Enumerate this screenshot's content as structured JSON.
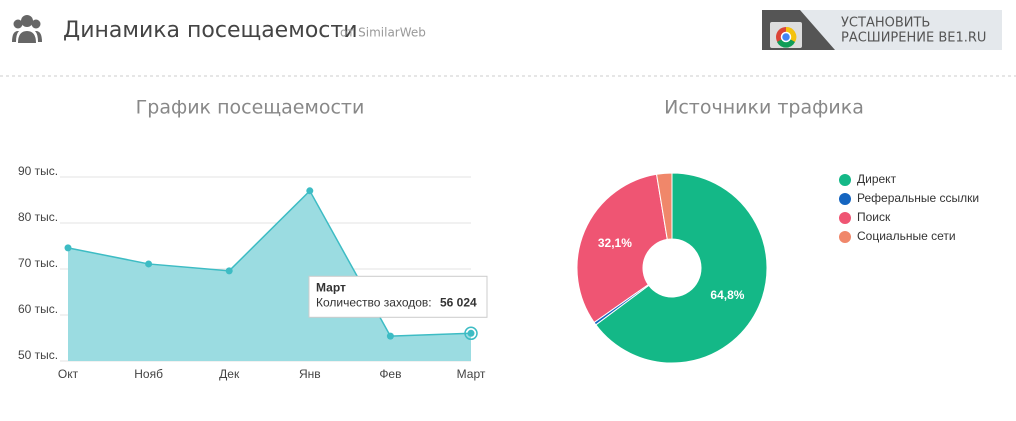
{
  "header": {
    "title": "Динамика посещаемости",
    "source": "от SimilarWeb",
    "button": [
      "УСТАНОВИТЬ",
      "РАСШИРЕНИЕ BE1.RU"
    ]
  },
  "chart_data": [
    {
      "type": "area",
      "title": "График посещаемости",
      "categories": [
        "Окт",
        "Нояб",
        "Дек",
        "Янв",
        "Фев",
        "Март"
      ],
      "values": [
        74600,
        71100,
        69600,
        87000,
        55400,
        56024
      ],
      "value_labels": [
        null,
        null,
        null,
        null,
        null,
        "56 024"
      ],
      "tooltip_label": "Количество заходов:",
      "color": "#3dbcc4",
      "fill": "#9bdce1",
      "ylim": [
        50000,
        90000
      ],
      "yticks": [
        {
          "value": 50000,
          "label": "50 тыс."
        },
        {
          "value": 60000,
          "label": "60 тыс."
        },
        {
          "value": 70000,
          "label": "70 тыс."
        },
        {
          "value": 80000,
          "label": "80 тыс."
        },
        {
          "value": 90000,
          "label": "90 тыс."
        }
      ],
      "grid": true
    },
    {
      "type": "donut",
      "title": "Источники трафика",
      "categories": [
        "Директ",
        "Реферальные ссылки",
        "Поиск",
        "Социальные сети"
      ],
      "values": [
        64.8,
        0.5,
        32.1,
        2.6
      ],
      "value_labels": [
        "64,8%",
        null,
        "32,1%",
        null
      ],
      "colors": [
        "#14b887",
        "#1565c0",
        "#ef5573",
        "#f0876a"
      ],
      "legend": "right"
    }
  ]
}
